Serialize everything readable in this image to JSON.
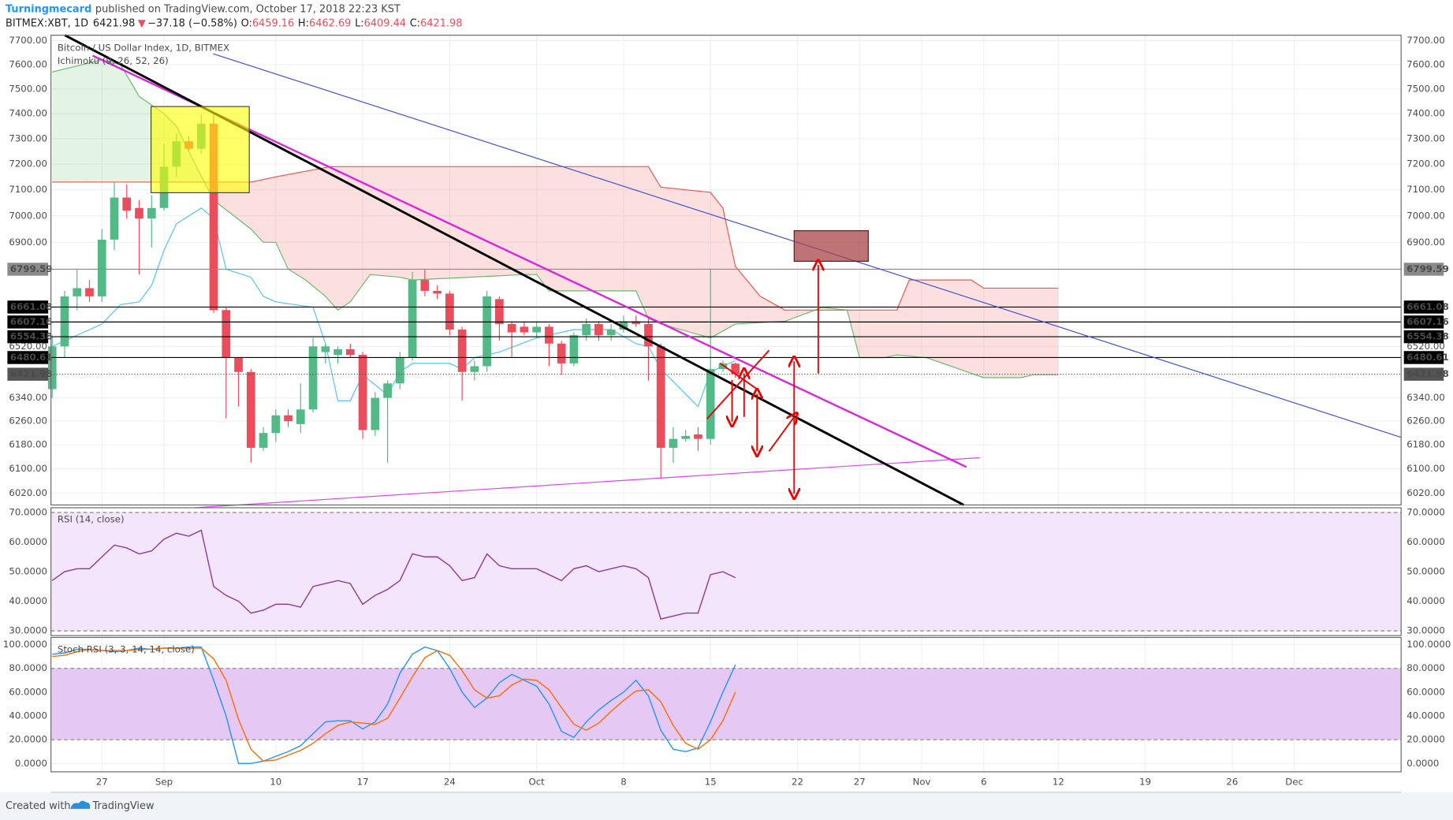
{
  "header": {
    "author": "Turningmecard",
    "published": "published on TradingView.com, October 17, 2018 22:23 KST",
    "symbol": "BITMEX:XBT, 1D",
    "last": 6421.98,
    "arrow": "▼",
    "change": "−37.18 (−0.58%)",
    "o_label": "O:",
    "open": 6459.16,
    "h_label": "H:",
    "high": 6462.69,
    "l_label": "L:",
    "low": 6409.44,
    "c_label": "C:",
    "close": 6421.98
  },
  "chart_data": [
    {
      "type": "candlestick",
      "title": "Bitcoin / US Dollar Index, 1D, BITMEX",
      "subtitle": "Ichimoku (9, 26, 52, 26)",
      "log": true,
      "grid": true,
      "up_color": "#53b987",
      "down_color": "#eb4d5c",
      "xlim": [
        -4.1,
        104.6
      ],
      "xticks": [
        {
          "value": 0,
          "label": "27"
        },
        {
          "value": 5,
          "label": "Sep"
        },
        {
          "value": 14,
          "label": "10"
        },
        {
          "value": 21,
          "label": "17"
        },
        {
          "value": 28,
          "label": "24"
        },
        {
          "value": 35,
          "label": "Oct"
        },
        {
          "value": 42,
          "label": "8"
        },
        {
          "value": 49,
          "label": "15"
        },
        {
          "value": 56,
          "label": "22"
        },
        {
          "value": 61,
          "label": "27"
        },
        {
          "value": 66,
          "label": "Nov"
        },
        {
          "value": 71,
          "label": "6"
        },
        {
          "value": 77,
          "label": "12"
        },
        {
          "value": 84,
          "label": "19"
        },
        {
          "value": 91,
          "label": "26"
        },
        {
          "value": 96,
          "label": "Dec"
        }
      ],
      "ylim": [
        5981,
        7723
      ],
      "yticks": [
        {
          "value": 7700,
          "label": "7700.00"
        },
        {
          "value": 7600,
          "label": "7600.00"
        },
        {
          "value": 7500,
          "label": "7500.00"
        },
        {
          "value": 7400,
          "label": "7400.00"
        },
        {
          "value": 7300,
          "label": "7300.00"
        },
        {
          "value": 7200,
          "label": "7200.00"
        },
        {
          "value": 7100,
          "label": "7100.00"
        },
        {
          "value": 7000,
          "label": "7000.00"
        },
        {
          "value": 6900,
          "label": "6900.00"
        },
        {
          "value": 6520,
          "label": "6520.00"
        },
        {
          "value": 6340,
          "label": "6340.00"
        },
        {
          "value": 6260,
          "label": "6260.00"
        },
        {
          "value": 6180,
          "label": "6180.00"
        },
        {
          "value": 6100,
          "label": "6100.00"
        },
        {
          "value": 6020,
          "label": "6020.00"
        }
      ],
      "price_lines": [
        6799.59,
        6661.08,
        6607.16,
        6554.38,
        6480.61,
        6421.98
      ],
      "x": [
        -4,
        -3,
        -2,
        -1,
        0,
        1,
        2,
        3,
        4,
        5,
        6,
        7,
        8,
        9,
        10,
        11,
        12,
        13,
        14,
        15,
        16,
        17,
        18,
        19,
        20,
        21,
        22,
        23,
        24,
        25,
        26,
        27,
        28,
        29,
        30,
        31,
        32,
        33,
        34,
        35,
        36,
        37,
        38,
        39,
        40,
        41,
        42,
        43,
        44,
        45,
        46,
        47,
        48,
        49,
        50,
        51
      ],
      "open": [
        6370,
        6520,
        6700,
        6730,
        6700,
        6910,
        7070,
        7030,
        6990,
        7030,
        7190,
        7290,
        7260,
        7360,
        6650,
        6480,
        6430,
        6170,
        6220,
        6280,
        6250,
        6300,
        6500,
        6490,
        6510,
        6490,
        6230,
        6340,
        6390,
        6480,
        6760,
        6720,
        6710,
        6580,
        6430,
        6450,
        6690,
        6600,
        6590,
        6570,
        6590,
        6530,
        6460,
        6560,
        6600,
        6560,
        6580,
        6610,
        6600,
        6520,
        6170,
        6200,
        6215,
        6200,
        6440,
        6459.16
      ],
      "high": [
        6560,
        6720,
        6800,
        6760,
        6950,
        7130,
        7120,
        7060,
        7080,
        7280,
        7320,
        7310,
        7400,
        7400,
        6660,
        6480,
        6440,
        6240,
        6300,
        6300,
        6390,
        6550,
        6530,
        6520,
        6530,
        6500,
        6360,
        6400,
        6500,
        6790,
        6800,
        6740,
        6720,
        6590,
        6470,
        6720,
        6700,
        6610,
        6610,
        6610,
        6600,
        6540,
        6570,
        6620,
        6610,
        6600,
        6630,
        6630,
        6620,
        6530,
        6240,
        6230,
        6240,
        6800,
        6470,
        6462.69
      ],
      "low": [
        6340,
        6480,
        6650,
        6680,
        6680,
        6870,
        6990,
        6780,
        6880,
        7020,
        7150,
        7250,
        7240,
        6640,
        6270,
        6310,
        6120,
        6160,
        6190,
        6240,
        6220,
        6290,
        6460,
        6460,
        6480,
        6200,
        6210,
        6120,
        6370,
        6470,
        6700,
        6690,
        6560,
        6330,
        6400,
        6430,
        6540,
        6480,
        6560,
        6550,
        6450,
        6420,
        6450,
        6540,
        6540,
        6540,
        6570,
        6590,
        6400,
        6070,
        6120,
        6190,
        6160,
        6180,
        6430,
        6409.44
      ],
      "close": [
        6520,
        6700,
        6730,
        6700,
        6910,
        7070,
        7020,
        6990,
        7030,
        7190,
        7290,
        7260,
        7360,
        6650,
        6480,
        6430,
        6170,
        6220,
        6280,
        6260,
        6300,
        6520,
        6520,
        6510,
        6490,
        6230,
        6340,
        6390,
        6480,
        6760,
        6720,
        6710,
        6580,
        6430,
        6450,
        6700,
        6600,
        6570,
        6570,
        6590,
        6530,
        6460,
        6560,
        6600,
        6560,
        6580,
        6610,
        6600,
        6520,
        6170,
        6200,
        6210,
        6200,
        6440,
        6460,
        6421.98
      ],
      "ichimoku": {
        "span_a": {
          "color": "#66bb6a",
          "x": [
            -4,
            0,
            1.5,
            3,
            5,
            6,
            7.5,
            9,
            12,
            13,
            14,
            15,
            16.4,
            18,
            19,
            20,
            21.6,
            24,
            25,
            34,
            35,
            36,
            38,
            43,
            44,
            45,
            49,
            51,
            55,
            58,
            60,
            61,
            63,
            64,
            66.4,
            71,
            74,
            75,
            77
          ],
          "values": [
            7570,
            7620,
            7600,
            7470,
            7400,
            7350,
            7200,
            7060,
            6950,
            6900,
            6900,
            6800,
            6760,
            6700,
            6650,
            6680,
            6780,
            6770,
            6760,
            6780,
            6780,
            6720,
            6720,
            6720,
            6620,
            6600,
            6550,
            6600,
            6610,
            6660,
            6650,
            6480,
            6480,
            6490,
            6480,
            6410,
            6410,
            6420,
            6420
          ]
        },
        "span_b": {
          "color": "#ef5350",
          "x": [
            -4,
            12,
            14,
            18.4,
            44,
            45,
            49,
            50,
            51,
            53,
            55,
            64,
            65,
            70,
            71,
            77
          ],
          "values": [
            7130,
            7130,
            7150,
            7190,
            7190,
            7110,
            7090,
            7030,
            6810,
            6700,
            6650,
            6650,
            6760,
            6760,
            6730,
            6730
          ]
        },
        "conversion": {
          "color": "#4fc3f7",
          "x": [
            -4,
            0,
            1.5,
            3,
            4,
            5,
            6,
            8,
            9,
            10,
            12,
            13,
            14,
            17,
            18,
            19,
            20,
            21,
            23,
            24,
            25,
            28,
            29,
            30,
            32,
            35,
            38,
            41,
            43,
            44,
            45,
            48,
            49,
            51
          ],
          "values": [
            6520,
            6600,
            6670,
            6680,
            6740,
            6870,
            6970,
            7030,
            6990,
            6800,
            6770,
            6700,
            6680,
            6660,
            6530,
            6330,
            6330,
            6420,
            6350,
            6430,
            6460,
            6460,
            6440,
            6480,
            6500,
            6550,
            6580,
            6580,
            6530,
            6520,
            6440,
            6310,
            6430,
            6470
          ]
        }
      }
    },
    {
      "type": "line",
      "title": "RSI (14, close)",
      "ylim": [
        28.4,
        71.6
      ],
      "band": [
        30,
        70
      ],
      "band_color": "#f3e5fb",
      "yticks": [
        {
          "value": 70,
          "label": "70.0000"
        },
        {
          "value": 60,
          "label": "60.0000"
        },
        {
          "value": 50,
          "label": "50.0000"
        },
        {
          "value": 40,
          "label": "40.0000"
        },
        {
          "value": 30,
          "label": "30.0000"
        }
      ],
      "series": [
        {
          "color": "#8e3a9c",
          "values": [
            47,
            50,
            51,
            51,
            55,
            59,
            58,
            56,
            57,
            61,
            63,
            62,
            64,
            45,
            42,
            40,
            36,
            37,
            39,
            39,
            38,
            45,
            46,
            47,
            46,
            39,
            42,
            44,
            47,
            56,
            55,
            55,
            52,
            47,
            48,
            56,
            52,
            51,
            51,
            51,
            49,
            47,
            51,
            52,
            50,
            51,
            52,
            51,
            48,
            34,
            35,
            36,
            36,
            49,
            50,
            48
          ]
        }
      ]
    },
    {
      "type": "line",
      "title": "Stoch RSI (3, 3, 14, 14, close)",
      "ylim": [
        -7,
        106
      ],
      "band": [
        20,
        80
      ],
      "band_color": "#e6c8f5",
      "yticks": [
        {
          "value": 100,
          "label": "100.0000"
        },
        {
          "value": 80,
          "label": "80.0000"
        },
        {
          "value": 60,
          "label": "60.0000"
        },
        {
          "value": 40,
          "label": "40.0000"
        },
        {
          "value": 20,
          "label": "20.0000"
        },
        {
          "value": 0,
          "label": "0.0000"
        }
      ],
      "series": [
        {
          "color": "#2196f3",
          "values": [
            92,
            93,
            96,
            96,
            95,
            94,
            95,
            97,
            96,
            97,
            97,
            98,
            98,
            70,
            40,
            0,
            0,
            2,
            6,
            10,
            15,
            25,
            35,
            36,
            36,
            29,
            35,
            50,
            76,
            92,
            98,
            95,
            80,
            60,
            47,
            55,
            68,
            75,
            70,
            65,
            50,
            27,
            22,
            35,
            45,
            53,
            60,
            70,
            57,
            28,
            12,
            10,
            13,
            35,
            60,
            83
          ]
        },
        {
          "color": "#ff6d00",
          "values": [
            90,
            91,
            94,
            96,
            95,
            95,
            95,
            96,
            96,
            97,
            97,
            97,
            97,
            88,
            70,
            37,
            12,
            2,
            3,
            7,
            11,
            17,
            25,
            32,
            35,
            34,
            33,
            38,
            55,
            73,
            89,
            95,
            91,
            78,
            62,
            55,
            57,
            66,
            71,
            70,
            62,
            47,
            33,
            28,
            34,
            44,
            53,
            61,
            62,
            52,
            32,
            17,
            12,
            20,
            36,
            60
          ]
        }
      ]
    }
  ],
  "footer": {
    "created": "Created with",
    "brand": "TradingView"
  }
}
